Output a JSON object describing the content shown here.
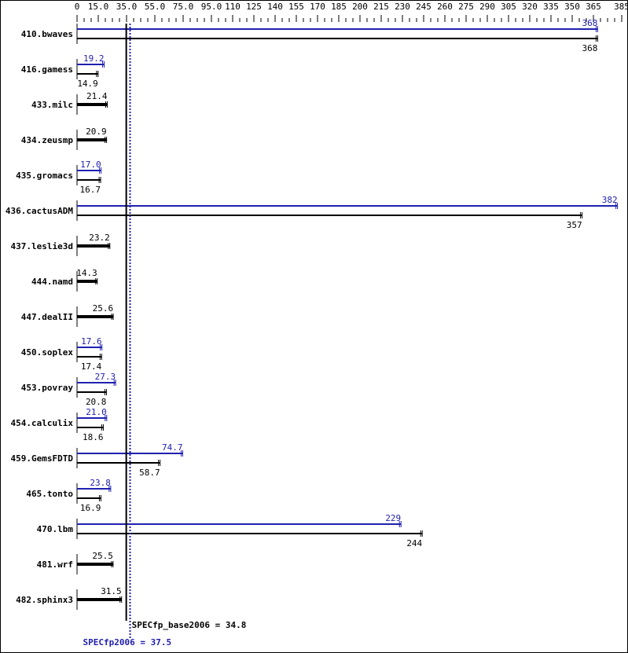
{
  "chart_data": {
    "type": "bar",
    "orientation": "horizontal",
    "xlim": [
      0,
      385
    ],
    "tick_labels": [
      "0",
      "15.0",
      "35.0",
      "55.0",
      "75.0",
      "95.0",
      "110",
      "125",
      "140",
      "155",
      "170",
      "185",
      "200",
      "215",
      "230",
      "245",
      "260",
      "275",
      "290",
      "305",
      "320",
      "335",
      "350",
      "365",
      "385"
    ],
    "tick_values": [
      0,
      15,
      35,
      55,
      75,
      95,
      110,
      125,
      140,
      155,
      170,
      185,
      200,
      215,
      230,
      245,
      260,
      275,
      290,
      305,
      320,
      335,
      350,
      365,
      385
    ],
    "minor_tick_step": 5,
    "colors": {
      "peak": "#2020b0",
      "base": "#000000"
    },
    "categories": [
      "410.bwaves",
      "416.gamess",
      "433.milc",
      "434.zeusmp",
      "435.gromacs",
      "436.cactusADM",
      "437.leslie3d",
      "444.namd",
      "447.dealII",
      "450.soplex",
      "453.povray",
      "454.calculix",
      "459.GemsFDTD",
      "465.tonto",
      "470.lbm",
      "481.wrf",
      "482.sphinx3"
    ],
    "series": [
      {
        "key": "peak",
        "values": [
          368,
          19.2,
          null,
          null,
          17.0,
          382,
          null,
          null,
          null,
          17.6,
          27.3,
          21.0,
          74.7,
          23.8,
          229,
          null,
          null
        ],
        "labels": [
          "368",
          "19.2",
          "",
          "",
          "17.0",
          "382",
          "",
          "",
          "",
          "17.6",
          "27.3",
          "21.0",
          "74.7",
          "23.8",
          "229",
          "",
          ""
        ]
      },
      {
        "key": "base",
        "values": [
          368,
          14.9,
          21.4,
          20.9,
          16.7,
          357,
          23.2,
          14.3,
          25.6,
          17.4,
          20.8,
          18.6,
          58.7,
          16.9,
          244,
          25.5,
          31.5
        ],
        "labels": [
          "368",
          "14.9",
          "21.4",
          "20.9",
          "16.7",
          "357",
          "23.2",
          "14.3",
          "25.6",
          "17.4",
          "20.8",
          "18.6",
          "58.7",
          "16.9",
          "244",
          "25.5",
          "31.5"
        ]
      }
    ],
    "reference_lines": [
      {
        "key": "base",
        "value": 34.8,
        "label": "SPECfp_base2006 = 34.8",
        "style": "solid"
      },
      {
        "key": "peak",
        "value": 37.5,
        "label": "SPECfp2006 = 37.5",
        "style": "dotted"
      }
    ]
  }
}
